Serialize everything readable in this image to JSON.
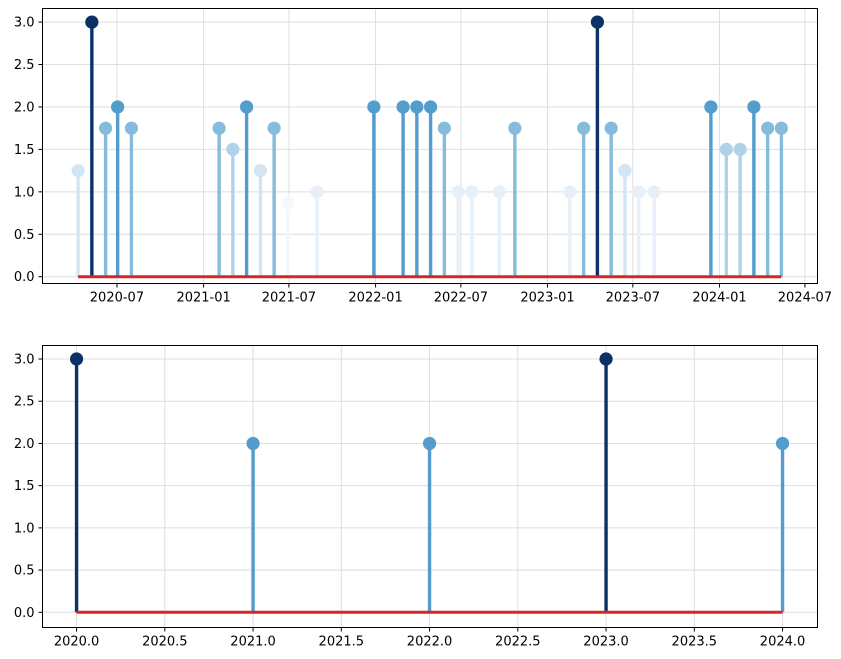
{
  "figure": {
    "background": "#ffffff",
    "spine_color": "#000000",
    "grid_color": "#dedede",
    "baseline_color": "#d62728",
    "tick_label_color": "#000000",
    "value_colors": {
      "0.875": "#f3f8fd",
      "1": "#e7f0f9",
      "1.25": "#d3e4f3",
      "1.5": "#b0d2e9",
      "1.75": "#85bcdb",
      "2": "#539dcc",
      "3": "#0b3166"
    }
  },
  "chart_data": [
    {
      "type": "stem",
      "title": "",
      "xlabel": "",
      "ylabel": "",
      "x_unit": "decimal_year_date_axis",
      "xlim": [
        2020.063,
        2024.57
      ],
      "ylim": [
        -0.08,
        3.16
      ],
      "grid": true,
      "legend": "none",
      "x_ticks": [
        {
          "value": 2020.496,
          "label": "2020-07"
        },
        {
          "value": 2021.0,
          "label": "2021-01"
        },
        {
          "value": 2021.496,
          "label": "2021-07"
        },
        {
          "value": 2022.0,
          "label": "2022-01"
        },
        {
          "value": 2022.496,
          "label": "2022-07"
        },
        {
          "value": 2023.0,
          "label": "2023-01"
        },
        {
          "value": 2023.496,
          "label": "2023-07"
        },
        {
          "value": 2024.0,
          "label": "2024-01"
        },
        {
          "value": 2024.497,
          "label": "2024-07"
        }
      ],
      "y_ticks": [
        {
          "value": 0.0,
          "label": "0.0"
        },
        {
          "value": 0.5,
          "label": "0.5"
        },
        {
          "value": 1.0,
          "label": "1.0"
        },
        {
          "value": 1.5,
          "label": "1.5"
        },
        {
          "value": 2.0,
          "label": "2.0"
        },
        {
          "value": 2.5,
          "label": "2.5"
        },
        {
          "value": 3.0,
          "label": "3.0"
        }
      ],
      "baseline": {
        "y": 0,
        "x_start": 2020.27,
        "x_end": 2024.36
      },
      "points": [
        {
          "x": 2020.27,
          "y": 1.25
        },
        {
          "x": 2020.35,
          "y": 3
        },
        {
          "x": 2020.43,
          "y": 1.75
        },
        {
          "x": 2020.5,
          "y": 2
        },
        {
          "x": 2020.58,
          "y": 1.75
        },
        {
          "x": 2021.09,
          "y": 1.75
        },
        {
          "x": 2021.17,
          "y": 1.5
        },
        {
          "x": 2021.25,
          "y": 2
        },
        {
          "x": 2021.33,
          "y": 1.25
        },
        {
          "x": 2021.41,
          "y": 1.75
        },
        {
          "x": 2021.49,
          "y": 0.875
        },
        {
          "x": 2021.66,
          "y": 1
        },
        {
          "x": 2021.99,
          "y": 2
        },
        {
          "x": 2022.16,
          "y": 2
        },
        {
          "x": 2022.24,
          "y": 2
        },
        {
          "x": 2022.32,
          "y": 2
        },
        {
          "x": 2022.4,
          "y": 1.75
        },
        {
          "x": 2022.48,
          "y": 1
        },
        {
          "x": 2022.56,
          "y": 1
        },
        {
          "x": 2022.72,
          "y": 1
        },
        {
          "x": 2022.81,
          "y": 1.75
        },
        {
          "x": 2023.13,
          "y": 1
        },
        {
          "x": 2023.21,
          "y": 1.75
        },
        {
          "x": 2023.29,
          "y": 3
        },
        {
          "x": 2023.37,
          "y": 1.75
        },
        {
          "x": 2023.45,
          "y": 1.25
        },
        {
          "x": 2023.53,
          "y": 1
        },
        {
          "x": 2023.62,
          "y": 1
        },
        {
          "x": 2023.95,
          "y": 2
        },
        {
          "x": 2024.04,
          "y": 1.5
        },
        {
          "x": 2024.12,
          "y": 1.5
        },
        {
          "x": 2024.2,
          "y": 2
        },
        {
          "x": 2024.28,
          "y": 1.75
        },
        {
          "x": 2024.36,
          "y": 1.75
        }
      ]
    },
    {
      "type": "stem",
      "title": "",
      "xlabel": "",
      "ylabel": "",
      "x_unit": "year",
      "xlim": [
        2019.807,
        2024.198
      ],
      "ylim": [
        -0.18,
        3.16
      ],
      "grid": true,
      "legend": "none",
      "x_ticks": [
        {
          "value": 2020.0,
          "label": "2020.0"
        },
        {
          "value": 2020.5,
          "label": "2020.5"
        },
        {
          "value": 2021.0,
          "label": "2021.0"
        },
        {
          "value": 2021.5,
          "label": "2021.5"
        },
        {
          "value": 2022.0,
          "label": "2022.0"
        },
        {
          "value": 2022.5,
          "label": "2022.5"
        },
        {
          "value": 2023.0,
          "label": "2023.0"
        },
        {
          "value": 2023.5,
          "label": "2023.5"
        },
        {
          "value": 2024.0,
          "label": "2024.0"
        }
      ],
      "y_ticks": [
        {
          "value": 0.0,
          "label": "0.0"
        },
        {
          "value": 0.5,
          "label": "0.5"
        },
        {
          "value": 1.0,
          "label": "1.0"
        },
        {
          "value": 1.5,
          "label": "1.5"
        },
        {
          "value": 2.0,
          "label": "2.0"
        },
        {
          "value": 2.5,
          "label": "2.5"
        },
        {
          "value": 3.0,
          "label": "3.0"
        }
      ],
      "baseline": {
        "y": 0,
        "x_start": 2020.0,
        "x_end": 2024.0
      },
      "points": [
        {
          "x": 2020,
          "y": 3
        },
        {
          "x": 2021,
          "y": 2
        },
        {
          "x": 2022,
          "y": 2
        },
        {
          "x": 2023,
          "y": 3
        },
        {
          "x": 2024,
          "y": 2
        }
      ]
    }
  ]
}
